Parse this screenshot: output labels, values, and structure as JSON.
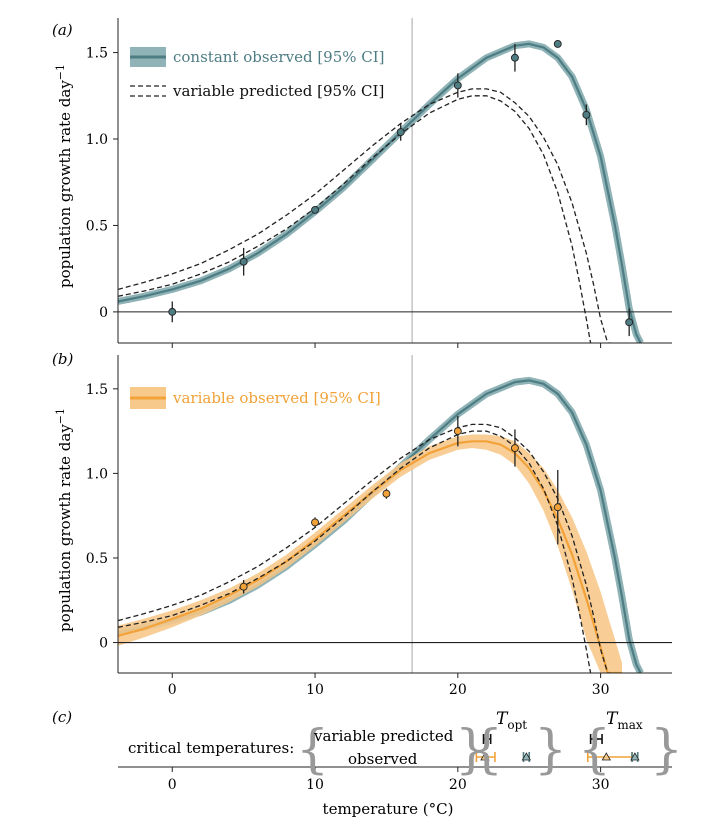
{
  "figure": {
    "panel_a_label": "(a)",
    "panel_b_label": "(b)",
    "panel_c_label": "(c)",
    "xlabel": "temperature (°C)",
    "ylabel_main": "population growth rate day",
    "ylabel_sup": "−1",
    "critical_label": "critical temperatures:",
    "critical_vp": "variable predicted",
    "critical_obs": "observed",
    "topt_T": "T",
    "topt_sub": "opt",
    "tmax_T": "T",
    "tmax_sub": "max",
    "colors": {
      "constant": "#4e7d83",
      "constant_band": "#8fb3b6",
      "variable": "#f2a238",
      "variable_band": "#f7c98b",
      "predicted": "#222222",
      "vline": "#bbbbbb",
      "brace": "#999999"
    }
  },
  "chart_data": [
    {
      "panel": "a",
      "type": "line",
      "xlim": [
        -3.8,
        35
      ],
      "ylim": [
        -0.18,
        1.7
      ],
      "xticks": [
        0,
        10,
        20,
        30
      ],
      "yticks": [
        0,
        0.5,
        1.0,
        1.5
      ],
      "ytick_labels": [
        "0",
        "0.5",
        "1.0",
        "1.5"
      ],
      "reference_vline_x": 16.8,
      "legend": [
        {
          "label": "constant observed [95% CI]",
          "style": "solid-band",
          "color": "#4e7d83"
        },
        {
          "label": "variable predicted [95% CI]",
          "style": "dashed"
        }
      ],
      "series": [
        {
          "name": "constant observed [95% CI]",
          "kind": "curve",
          "x": [
            -3.8,
            -2,
            0,
            2,
            4,
            6,
            8,
            10,
            12,
            14,
            16,
            18,
            20,
            22,
            24,
            25,
            26,
            27,
            28,
            29,
            30,
            31,
            31.5,
            32,
            32.5,
            32.8
          ],
          "y": [
            0.06,
            0.09,
            0.13,
            0.18,
            0.25,
            0.34,
            0.45,
            0.58,
            0.72,
            0.88,
            1.04,
            1.2,
            1.35,
            1.47,
            1.54,
            1.55,
            1.53,
            1.47,
            1.36,
            1.17,
            0.9,
            0.5,
            0.27,
            0.02,
            -0.13,
            -0.18
          ]
        },
        {
          "name": "variable predicted [95% CI]",
          "kind": "dashed-band",
          "upper_x": [
            -3.8,
            -2,
            0,
            2,
            4,
            6,
            8,
            10,
            12,
            14,
            16,
            18,
            20,
            21,
            22,
            23,
            24,
            25,
            26,
            27,
            28,
            29,
            29.5,
            30,
            30.5,
            30.7
          ],
          "upper_y": [
            0.13,
            0.17,
            0.22,
            0.28,
            0.36,
            0.45,
            0.56,
            0.68,
            0.82,
            0.96,
            1.09,
            1.2,
            1.27,
            1.29,
            1.29,
            1.27,
            1.21,
            1.13,
            1.01,
            0.85,
            0.63,
            0.34,
            0.16,
            -0.04,
            -0.18,
            -0.18
          ],
          "lower_x": [
            -3.8,
            -2,
            0,
            2,
            4,
            6,
            8,
            10,
            12,
            14,
            16,
            18,
            20,
            21,
            22,
            23,
            24,
            25,
            26,
            27,
            28,
            28.5,
            29,
            29.3
          ],
          "lower_y": [
            0.09,
            0.12,
            0.16,
            0.22,
            0.29,
            0.38,
            0.48,
            0.6,
            0.74,
            0.89,
            1.03,
            1.15,
            1.23,
            1.25,
            1.25,
            1.22,
            1.16,
            1.06,
            0.91,
            0.69,
            0.38,
            0.18,
            -0.04,
            -0.18
          ]
        }
      ],
      "points": {
        "name": "constant observed",
        "x": [
          0,
          5,
          10,
          16,
          20,
          24,
          27,
          29,
          32
        ],
        "y": [
          0.0,
          0.29,
          0.59,
          1.04,
          1.31,
          1.47,
          1.55,
          1.14,
          -0.06
        ],
        "err": [
          0.06,
          0.08,
          0.0,
          0.05,
          0.07,
          0.08,
          0.0,
          0.06,
          0.08
        ]
      }
    },
    {
      "panel": "b",
      "type": "line",
      "xlim": [
        -3.8,
        35
      ],
      "ylim": [
        -0.18,
        1.7
      ],
      "xticks": [
        0,
        10,
        20,
        30
      ],
      "xtick_labels": [
        "0",
        "10",
        "20",
        "30"
      ],
      "yticks": [
        0,
        0.5,
        1.0,
        1.5
      ],
      "ytick_labels": [
        "0",
        "0.5",
        "1.0",
        "1.5"
      ],
      "reference_vline_x": 16.8,
      "legend": [
        {
          "label": "variable observed [95% CI]",
          "style": "solid-band",
          "color": "#f2a238"
        }
      ],
      "series": [
        {
          "name": "constant observed",
          "kind": "curve"
        },
        {
          "name": "variable predicted",
          "kind": "dashed-band"
        },
        {
          "name": "variable observed [95% CI]",
          "kind": "band-curve",
          "x": [
            -3.8,
            -2,
            0,
            2,
            4,
            6,
            8,
            10,
            12,
            14,
            16,
            18,
            20,
            21,
            22,
            23,
            24,
            25,
            26,
            27,
            28,
            29,
            30,
            30.5,
            31,
            31.5
          ],
          "y": [
            0.04,
            0.08,
            0.14,
            0.2,
            0.28,
            0.37,
            0.48,
            0.61,
            0.75,
            0.89,
            1.02,
            1.12,
            1.18,
            1.19,
            1.19,
            1.17,
            1.12,
            1.03,
            0.9,
            0.73,
            0.52,
            0.26,
            -0.03,
            -0.18,
            -0.18,
            -0.18
          ],
          "lower": [
            -0.02,
            0.03,
            0.09,
            0.16,
            0.24,
            0.33,
            0.44,
            0.57,
            0.71,
            0.85,
            0.98,
            1.08,
            1.14,
            1.15,
            1.14,
            1.11,
            1.05,
            0.94,
            0.78,
            0.57,
            0.31,
            0.02,
            -0.18,
            -0.18,
            -0.18,
            -0.18
          ],
          "upper": [
            0.1,
            0.14,
            0.19,
            0.25,
            0.32,
            0.41,
            0.52,
            0.65,
            0.79,
            0.93,
            1.06,
            1.16,
            1.22,
            1.23,
            1.23,
            1.22,
            1.19,
            1.12,
            1.03,
            0.9,
            0.74,
            0.54,
            0.3,
            0.16,
            0.02,
            -0.12
          ]
        }
      ],
      "points": {
        "name": "variable observed",
        "x": [
          5,
          10,
          15,
          20,
          24,
          27
        ],
        "y": [
          0.33,
          0.71,
          0.88,
          1.25,
          1.15,
          0.8
        ],
        "err": [
          0.04,
          0.03,
          0.03,
          0.09,
          0.11,
          0.22
        ]
      }
    },
    {
      "panel": "c",
      "type": "scatter",
      "xlim": [
        -3.8,
        35
      ],
      "xticks": [
        0,
        10,
        20,
        30
      ],
      "xtick_labels": [
        "0",
        "10",
        "20",
        "30"
      ],
      "series": [
        {
          "name": "T_opt variable predicted",
          "x": 22.0,
          "ci": [
            21.8,
            22.3
          ],
          "row": 1,
          "marker": "dot",
          "color": "#111111"
        },
        {
          "name": "T_opt variable observed",
          "x": 21.9,
          "ci": [
            21.3,
            22.6
          ],
          "row": 2,
          "marker": "triangle",
          "color": "#f2a238"
        },
        {
          "name": "T_opt constant observed",
          "x": 24.8,
          "ci": [
            24.6,
            25.0
          ],
          "row": 2,
          "marker": "triangle",
          "color": "#4e7d83"
        },
        {
          "name": "T_max variable predicted",
          "x": 29.6,
          "ci": [
            29.3,
            30.1
          ],
          "row": 1,
          "marker": "dot",
          "color": "#111111"
        },
        {
          "name": "T_max variable observed",
          "x": 30.4,
          "ci": [
            29.1,
            32.2
          ],
          "row": 2,
          "marker": "triangle",
          "color": "#f2a238"
        },
        {
          "name": "T_max constant observed",
          "x": 32.4,
          "ci": [
            32.2,
            32.6
          ],
          "row": 2,
          "marker": "triangle",
          "color": "#4e7d83"
        }
      ]
    }
  ]
}
